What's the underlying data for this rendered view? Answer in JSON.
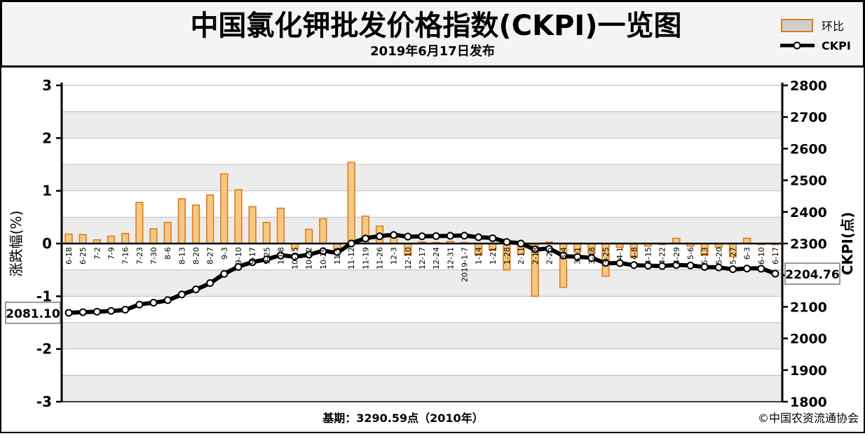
{
  "header": {
    "title": "中国氯化钾批发价格指数(CKPI)一览图",
    "subtitle": "2019年6月17日发布"
  },
  "legend": {
    "bar_label": "环比",
    "line_label": "CKPI"
  },
  "footer": {
    "base_note": "基期：3290.59点（2010年）",
    "credit": "©中国农资流通协会"
  },
  "colors": {
    "bar_fill": "#f3c983",
    "bar_stroke": "#e07b1a",
    "line": "#000000",
    "band": "#ececec",
    "grid": "#bdbdbd"
  },
  "chart_data": {
    "type": "bar+line",
    "title": "中国氯化钾批发价格指数(CKPI)一览图",
    "subtitle": "2019年6月17日发布",
    "ylabel_left": "涨跌幅(%)",
    "ylabel_right": "CKPI(点)",
    "ylim_left": [
      -3,
      3
    ],
    "ylim_right": [
      1800,
      2800
    ],
    "yticks_left": [
      -3,
      -2,
      -1,
      0,
      1,
      2,
      3
    ],
    "yticks_right": [
      1800,
      1900,
      2000,
      2100,
      2200,
      2300,
      2400,
      2500,
      2600,
      2700,
      2800
    ],
    "categories": [
      "6-18",
      "6-25",
      "7-2",
      "7-9",
      "7-16",
      "7-23",
      "7-30",
      "8-6",
      "8-13",
      "8-20",
      "8-27",
      "9-3",
      "9-10",
      "9-17",
      "9-25",
      "10-8",
      "10-15",
      "10-22",
      "10-29",
      "11-5",
      "11-12",
      "11-19",
      "11-26",
      "12-3",
      "12-10",
      "12-17",
      "12-24",
      "12-31",
      "2019-1-7",
      "1-14",
      "1-21",
      "1-28",
      "2-11",
      "2-18",
      "2-25",
      "3-4",
      "3-11",
      "3-18",
      "3-25",
      "4-1",
      "4-8",
      "4-15",
      "4-22",
      "4-29",
      "5-6",
      "5-13",
      "5-20",
      "5-27",
      "6-3",
      "6-10",
      "6-17"
    ],
    "series": [
      {
        "name": "环比",
        "type": "bar",
        "values": [
          0.18,
          0.17,
          0.07,
          0.14,
          0.19,
          0.78,
          0.28,
          0.4,
          0.85,
          0.73,
          0.92,
          1.32,
          1.02,
          0.7,
          0.4,
          0.67,
          -0.1,
          0.27,
          0.47,
          -0.14,
          1.54,
          0.52,
          0.33,
          0.12,
          -0.22,
          0.03,
          0.02,
          0.04,
          0.02,
          -0.22,
          -0.13,
          -0.5,
          -0.2,
          -1.0,
          0.03,
          -0.83,
          -0.16,
          -0.18,
          -0.62,
          -0.07,
          -0.27,
          -0.05,
          -0.02,
          0.1,
          -0.05,
          -0.22,
          -0.07,
          -0.25,
          0.1,
          -0.02,
          -0.02
        ]
      },
      {
        "name": "CKPI",
        "type": "line",
        "values": [
          2081.1,
          2083.0,
          2084.5,
          2087.0,
          2091.0,
          2107.0,
          2113.0,
          2121.0,
          2139.0,
          2155.0,
          2175.0,
          2204.0,
          2226.0,
          2241.0,
          2250.0,
          2262.0,
          2259.0,
          2265.0,
          2276.0,
          2273.0,
          2300.0,
          2316.0,
          2323.0,
          2327.0,
          2322.0,
          2323.0,
          2323.5,
          2324.5,
          2325.0,
          2320.0,
          2317.0,
          2305.0,
          2300.0,
          2282.0,
          2283.0,
          2262.0,
          2258.0,
          2254.0,
          2239.0,
          2238.0,
          2232.0,
          2230.0,
          2229.0,
          2232.0,
          2230.5,
          2226.0,
          2224.5,
          2219.0,
          2221.0,
          2220.5,
          2204.76
        ]
      }
    ],
    "value_labels": {
      "first": "2081.10",
      "last": "2204.76"
    }
  }
}
